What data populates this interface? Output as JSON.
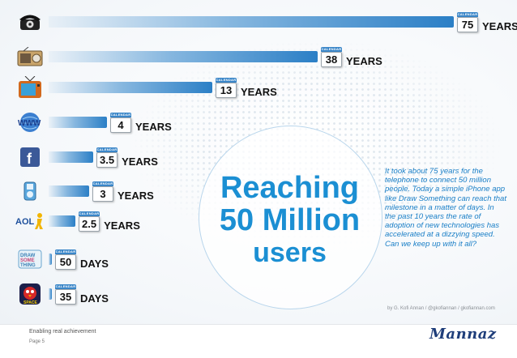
{
  "headline": {
    "line1": "Reaching",
    "line2": "50 Million",
    "line3": "users"
  },
  "note": "It took about 75 years for the telephone to connect 50 million people. Today a simple iPhone app like Draw Something can reach that milestone in a matter of days. In the past 10 years the rate of adoption of new technologies has accelerated at a dizzying speed. Can we keep up with it all?",
  "credit": "by G. Kofi Annan / @gkofiannan / gkofiannan.com",
  "footer": {
    "tagline": "Enabling real achievement",
    "page": "Page 5",
    "logo": "Mannaz"
  },
  "calendar_word": "CALENDAR",
  "chart_data": {
    "type": "bar",
    "orientation": "horizontal",
    "title": "Reaching 50 Million users",
    "categories": [
      "Telephone",
      "Radio",
      "Television",
      "Internet (WWW)",
      "Facebook",
      "iPod",
      "AOL",
      "Draw Something",
      "Angry Birds Space"
    ],
    "icons": [
      "telephone-icon",
      "radio-icon",
      "television-icon",
      "www-icon",
      "facebook-icon",
      "ipod-icon",
      "aol-icon",
      "draw-something-icon",
      "angry-birds-icon"
    ],
    "series": [
      {
        "name": "Time to reach 50 million users",
        "values_days": [
          27375,
          13870,
          4745,
          1460,
          1278,
          1095,
          913,
          50,
          35
        ]
      }
    ],
    "display_labels": [
      {
        "value": "75",
        "unit": "YEARS"
      },
      {
        "value": "38",
        "unit": "YEARS"
      },
      {
        "value": "13",
        "unit": "YEARS"
      },
      {
        "value": "4",
        "unit": "YEARS"
      },
      {
        "value": "3.5",
        "unit": "YEARS"
      },
      {
        "value": "3",
        "unit": "YEARS"
      },
      {
        "value": "2.5",
        "unit": "YEARS"
      },
      {
        "value": "50",
        "unit": "DAYS"
      },
      {
        "value": "35",
        "unit": "DAYS"
      }
    ],
    "xlabel": "",
    "ylabel": "",
    "grid": false,
    "legend": "none",
    "colors": {
      "bar": "#2b7fc6",
      "headline": "#1b8fd3",
      "calendar_top": "#3a86c8"
    }
  }
}
